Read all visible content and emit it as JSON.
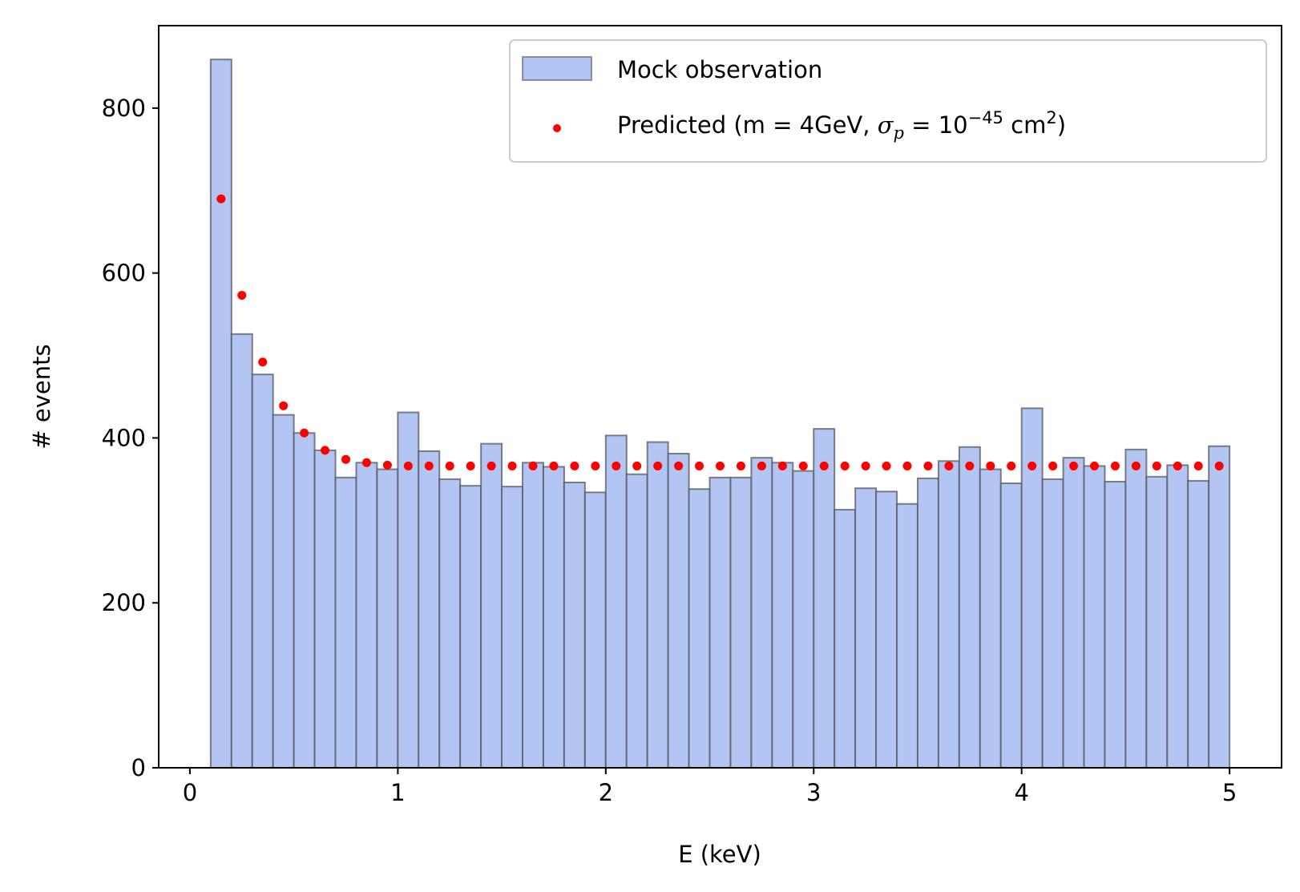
{
  "chart_data": {
    "type": "bar",
    "xlabel": "E (keV)",
    "ylabel": "# events",
    "xlim": [
      -0.15,
      5.25
    ],
    "ylim": [
      0,
      900
    ],
    "xticks": [
      0,
      1,
      2,
      3,
      4,
      5
    ],
    "yticks": [
      0,
      200,
      400,
      600,
      800
    ],
    "grid": false,
    "legend_position": "top-right",
    "colors": {
      "bar_fill": "#b3c5f3",
      "bar_edge": "#55585f",
      "points": "#ff0000"
    },
    "histogram": {
      "name": "Mock observation",
      "bin_edges": [
        0.1,
        0.2,
        0.3,
        0.4,
        0.5,
        0.6,
        0.7,
        0.8,
        0.9,
        1.0,
        1.1,
        1.2,
        1.3,
        1.4,
        1.5,
        1.6,
        1.7,
        1.8,
        1.9,
        2.0,
        2.1,
        2.2,
        2.3,
        2.4,
        2.5,
        2.6,
        2.7,
        2.8,
        2.9,
        3.0,
        3.1,
        3.2,
        3.3,
        3.4,
        3.5,
        3.6,
        3.7,
        3.8,
        3.9,
        4.0,
        4.1,
        4.2,
        4.3,
        4.4,
        4.5,
        4.6,
        4.7,
        4.8,
        4.9,
        5.0
      ],
      "counts": [
        859,
        526,
        477,
        428,
        406,
        385,
        352,
        370,
        362,
        431,
        384,
        350,
        342,
        393,
        341,
        370,
        365,
        346,
        334,
        403,
        356,
        395,
        381,
        338,
        352,
        352,
        376,
        370,
        360,
        411,
        313,
        339,
        335,
        320,
        351,
        372,
        389,
        362,
        345,
        436,
        350,
        376,
        366,
        347,
        386,
        353,
        367,
        348,
        390
      ]
    },
    "scatter": {
      "legend_prefix": "Predicted (m = 4GeV, ",
      "legend_math_sigma": "σ",
      "legend_math_sub": "p",
      "legend_math_eq": " = 10",
      "legend_math_exp": "−45",
      "legend_math_unit": " cm",
      "legend_math_unit_exp": "2",
      "legend_suffix": ")",
      "x": [
        0.15,
        0.25,
        0.35,
        0.45,
        0.55,
        0.65,
        0.75,
        0.85,
        0.95,
        1.05,
        1.15,
        1.25,
        1.35,
        1.45,
        1.55,
        1.65,
        1.75,
        1.85,
        1.95,
        2.05,
        2.15,
        2.25,
        2.35,
        2.45,
        2.55,
        2.65,
        2.75,
        2.85,
        2.95,
        3.05,
        3.15,
        3.25,
        3.35,
        3.45,
        3.55,
        3.65,
        3.75,
        3.85,
        3.95,
        4.05,
        4.15,
        4.25,
        4.35,
        4.45,
        4.55,
        4.65,
        4.75,
        4.85,
        4.95
      ],
      "y": [
        690,
        573,
        492,
        439,
        406,
        385,
        374,
        370,
        367,
        366,
        366,
        366,
        366,
        366,
        366,
        366,
        366,
        366,
        366,
        366,
        366,
        366,
        366,
        366,
        366,
        366,
        366,
        366,
        366,
        366,
        366,
        366,
        366,
        366,
        366,
        366,
        366,
        366,
        366,
        366,
        366,
        366,
        366,
        366,
        366,
        366,
        366,
        366,
        366
      ]
    }
  }
}
